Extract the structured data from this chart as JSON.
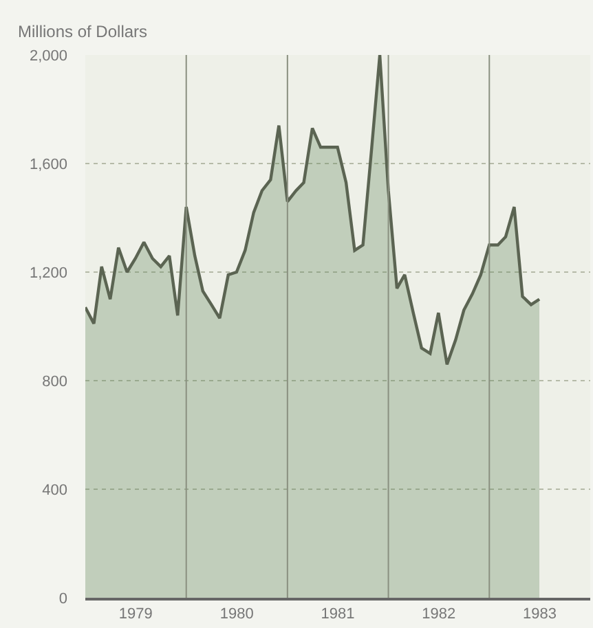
{
  "chart_data": {
    "type": "area",
    "ylabel": "Millions of Dollars",
    "x": [
      "1979-01",
      "1979-02",
      "1979-03",
      "1979-04",
      "1979-05",
      "1979-06",
      "1979-07",
      "1979-08",
      "1979-09",
      "1979-10",
      "1979-11",
      "1979-12",
      "1980-01",
      "1980-02",
      "1980-03",
      "1980-04",
      "1980-05",
      "1980-06",
      "1980-07",
      "1980-08",
      "1980-09",
      "1980-10",
      "1980-11",
      "1980-12",
      "1981-01",
      "1981-02",
      "1981-03",
      "1981-04",
      "1981-05",
      "1981-06",
      "1981-07",
      "1981-08",
      "1981-09",
      "1981-10",
      "1981-11",
      "1981-12",
      "1982-01",
      "1982-02",
      "1982-03",
      "1982-04",
      "1982-05",
      "1982-06",
      "1982-07",
      "1982-08",
      "1982-09",
      "1982-10",
      "1982-11",
      "1982-12",
      "1983-01",
      "1983-02",
      "1983-03",
      "1983-04",
      "1983-05",
      "1983-06",
      "1983-07"
    ],
    "series": [
      {
        "color": "#5b6452",
        "values": [
          1070,
          1010,
          1220,
          1100,
          1290,
          1200,
          1250,
          1310,
          1250,
          1220,
          1260,
          1040,
          1440,
          1260,
          1130,
          1080,
          1030,
          1190,
          1200,
          1280,
          1420,
          1500,
          1540,
          1740,
          1460,
          1500,
          1530,
          1730,
          1660,
          1660,
          1660,
          1530,
          1280,
          1300,
          1650,
          2000,
          1500,
          1140,
          1190,
          1050,
          920,
          900,
          1050,
          860,
          950,
          1060,
          1120,
          1190,
          1300,
          1300,
          1330,
          1440,
          1110,
          1080,
          1100
        ]
      }
    ],
    "xlim": [
      "1979-01-01",
      "1984-01-01"
    ],
    "xticks": [
      {
        "value": "1979-07-02",
        "label": "1979"
      },
      {
        "value": "1980-01-01",
        "label": null
      },
      {
        "value": "1980-07-02",
        "label": "1980"
      },
      {
        "value": "1981-01-01",
        "label": null
      },
      {
        "value": "1981-07-02",
        "label": "1981"
      },
      {
        "value": "1982-01-01",
        "label": null
      },
      {
        "value": "1982-07-02",
        "label": "1982"
      },
      {
        "value": "1983-01-01",
        "label": null
      },
      {
        "value": "1983-07-02",
        "label": "1983"
      }
    ],
    "ylim": [
      0,
      2000
    ],
    "yticks": [
      0,
      400,
      800,
      {
        "value": 1200,
        "label": "1,200"
      },
      {
        "value": 1600,
        "label": "1,600"
      },
      {
        "value": 2000,
        "label": "2,000"
      }
    ],
    "grid": true,
    "legend": false
  }
}
